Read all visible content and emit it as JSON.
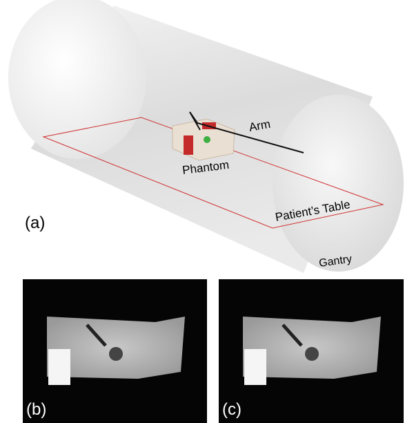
{
  "panel_a": {
    "label": "(a)",
    "annotations": {
      "arm": "Arm",
      "phantom": "Phantom",
      "table": "Patient’s Table",
      "gantry": "Gantry"
    }
  },
  "panel_b": {
    "label": "(b)"
  },
  "panel_c": {
    "label": "(c)"
  }
}
